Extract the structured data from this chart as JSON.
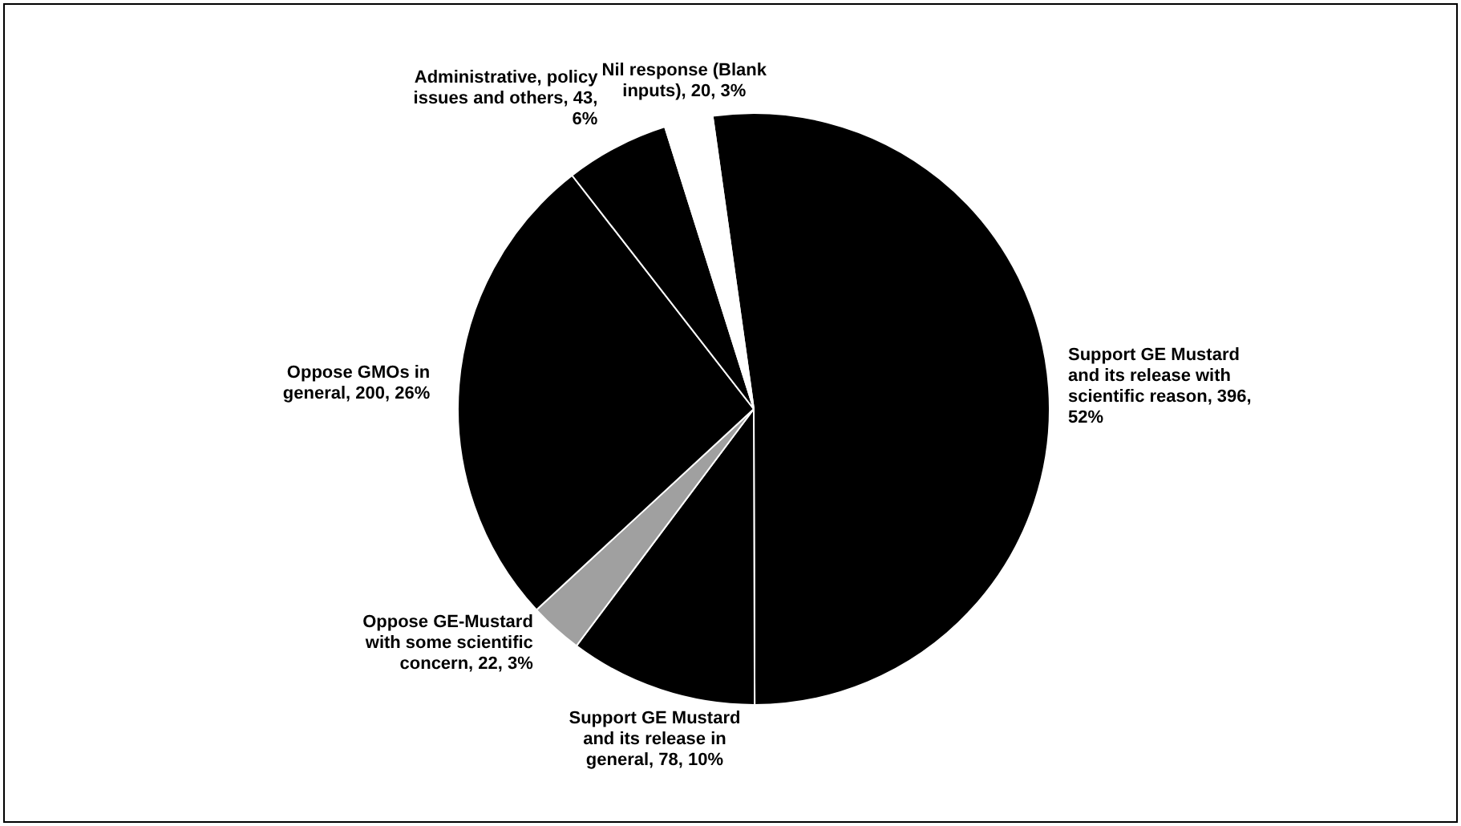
{
  "chart_data": {
    "type": "pie",
    "categories": [
      "Support GE Mustard and its release with scientific reason",
      "Support GE Mustard and its release in general",
      "Oppose GE-Mustard with some scientific concern",
      "Oppose GMOs in general",
      "Administrative, policy issues and others",
      "Nil response (Blank inputs)"
    ],
    "values": [
      396,
      78,
      22,
      200,
      43,
      20
    ],
    "value_labels": [
      "396, 52%",
      "78, 10%",
      "22, 3%",
      "200, 26%",
      "43, 6%",
      "20, 3%"
    ],
    "colors": [
      "#000000",
      "#000000",
      "#a0a0a0",
      "#000000",
      "#000000",
      "#ffffff"
    ],
    "legend": false
  }
}
